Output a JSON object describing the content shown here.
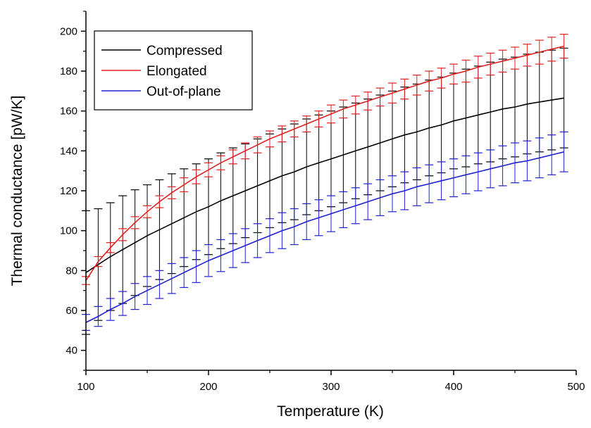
{
  "chart_data": {
    "type": "line",
    "title": "",
    "xlabel": "Temperature (K)",
    "ylabel": "Thermal conductance [pW/K]",
    "xlim": [
      100,
      500
    ],
    "ylim": [
      30,
      210
    ],
    "xticks": [
      100,
      200,
      300,
      400,
      500
    ],
    "yticks": [
      40,
      60,
      80,
      100,
      120,
      140,
      160,
      180,
      200
    ],
    "grid": false,
    "legend_position": "top-left",
    "x": [
      100,
      110,
      120,
      130,
      140,
      150,
      160,
      170,
      180,
      190,
      200,
      210,
      220,
      230,
      240,
      250,
      260,
      270,
      280,
      290,
      300,
      310,
      320,
      330,
      340,
      350,
      360,
      370,
      380,
      390,
      400,
      410,
      420,
      430,
      440,
      450,
      460,
      470,
      480,
      490
    ],
    "series": [
      {
        "name": "Compressed",
        "color": "#000000",
        "values": [
          79,
          83,
          87,
          90.5,
          94,
          97.5,
          100.5,
          103.5,
          106.5,
          109.5,
          112,
          115,
          117.5,
          120,
          122.5,
          125,
          127.5,
          129.5,
          132,
          134,
          136,
          138,
          140,
          142,
          144,
          146,
          148,
          149.5,
          151.5,
          153,
          155,
          156.5,
          158,
          159.5,
          161,
          162,
          163.5,
          164.5,
          165.5,
          166.5
        ],
        "err": [
          31,
          28,
          27,
          27,
          26.5,
          25.5,
          25,
          25,
          24.5,
          24,
          24,
          24,
          24,
          23.5,
          23.5,
          23.5,
          23.5,
          24,
          24,
          24,
          24,
          24,
          24,
          24,
          24,
          24,
          24,
          24,
          24,
          24,
          24,
          24.5,
          24.5,
          25,
          25,
          25,
          25,
          25,
          25,
          25
        ]
      },
      {
        "name": "Elongated",
        "color": "#e02020",
        "values": [
          75,
          84.5,
          91.5,
          98,
          104,
          109.5,
          114.5,
          119,
          123,
          127,
          130.5,
          134,
          137,
          140,
          143,
          146,
          148.5,
          151,
          153.5,
          156,
          158.5,
          161,
          163,
          165,
          167,
          169,
          171,
          173,
          175,
          176.5,
          178.5,
          180,
          182,
          183.5,
          185,
          186.5,
          188,
          189.5,
          191,
          192.5
        ],
        "err": [
          2,
          2.5,
          2.5,
          3,
          3,
          3,
          3,
          3,
          3.5,
          3.5,
          3.5,
          3.5,
          3.5,
          4,
          4,
          4,
          4,
          4,
          4,
          4,
          4.5,
          4.5,
          4.5,
          4.5,
          4.5,
          5,
          5,
          5,
          5,
          5,
          5,
          5.5,
          5.5,
          5.5,
          5.5,
          5.5,
          5.5,
          6,
          6,
          6
        ]
      },
      {
        "name": "Out-of-plane",
        "color": "#2020d0",
        "values": [
          54,
          57,
          60.5,
          63.5,
          67,
          70,
          73,
          76,
          79,
          82,
          85,
          87.5,
          90,
          92.5,
          95,
          97.5,
          100,
          102,
          104.5,
          106.5,
          108.5,
          110.5,
          112.5,
          114.5,
          116.5,
          118.5,
          120,
          122,
          123.5,
          125,
          126.5,
          128,
          129.5,
          131,
          132.5,
          134,
          135,
          136.5,
          138,
          139.5
        ],
        "err": [
          4,
          5,
          5.5,
          6,
          6.5,
          7,
          7,
          7.5,
          7.5,
          8,
          8,
          8,
          8.5,
          8.5,
          8.5,
          8.5,
          9,
          9,
          9,
          9,
          9,
          9,
          9,
          9,
          9,
          9,
          9.5,
          9.5,
          9.5,
          9.5,
          9.5,
          9.5,
          9.5,
          9.5,
          10,
          10,
          10,
          10,
          10,
          10
        ]
      }
    ]
  }
}
